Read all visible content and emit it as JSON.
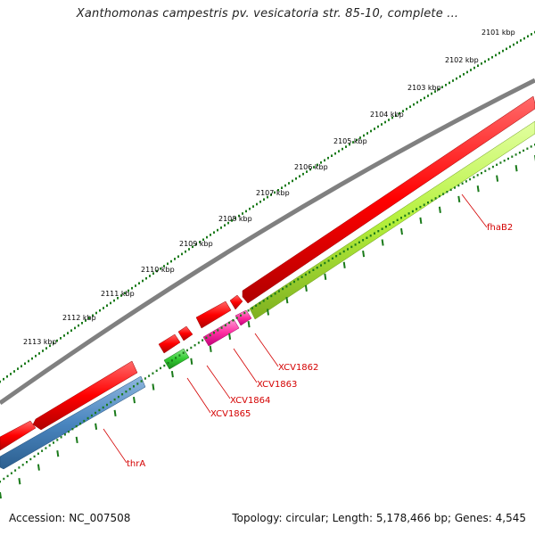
{
  "title": "Xanthomonas campestris pv. vesicatoria str. 85-10, complete ...",
  "footer": {
    "accession": "Accession: NC_007508",
    "summary": "Topology: circular; Length: 5,178,466 bp; Genes: 4,545"
  },
  "scale": {
    "unit": "kbp",
    "ticks": [
      "2101 kbp",
      "2102 kbp",
      "2103 kbp",
      "2104 kbp",
      "2105 kbp",
      "2106 kbp",
      "2107 kbp",
      "2108 kbp",
      "2109 kbp",
      "2110 kbp",
      "2111 kbp",
      "2112 kbp",
      "2113 kbp"
    ]
  },
  "genes": [
    {
      "label": "fhaB2",
      "color": "#b5f03c"
    },
    {
      "label": "XCV1862",
      "color": "#ff2ea0"
    },
    {
      "label": "XCV1863",
      "color": "#ff0000"
    },
    {
      "label": "XCV1864",
      "color": "#ff0000"
    },
    {
      "label": "XCV1865",
      "color": "#33cc33"
    },
    {
      "label": "thrA",
      "color": "#4a86c0"
    }
  ],
  "colors": {
    "backbone": "#808080",
    "forward_strand": "#ff0000",
    "label": "#d40000",
    "tick_dots": "#1a7a1a"
  }
}
